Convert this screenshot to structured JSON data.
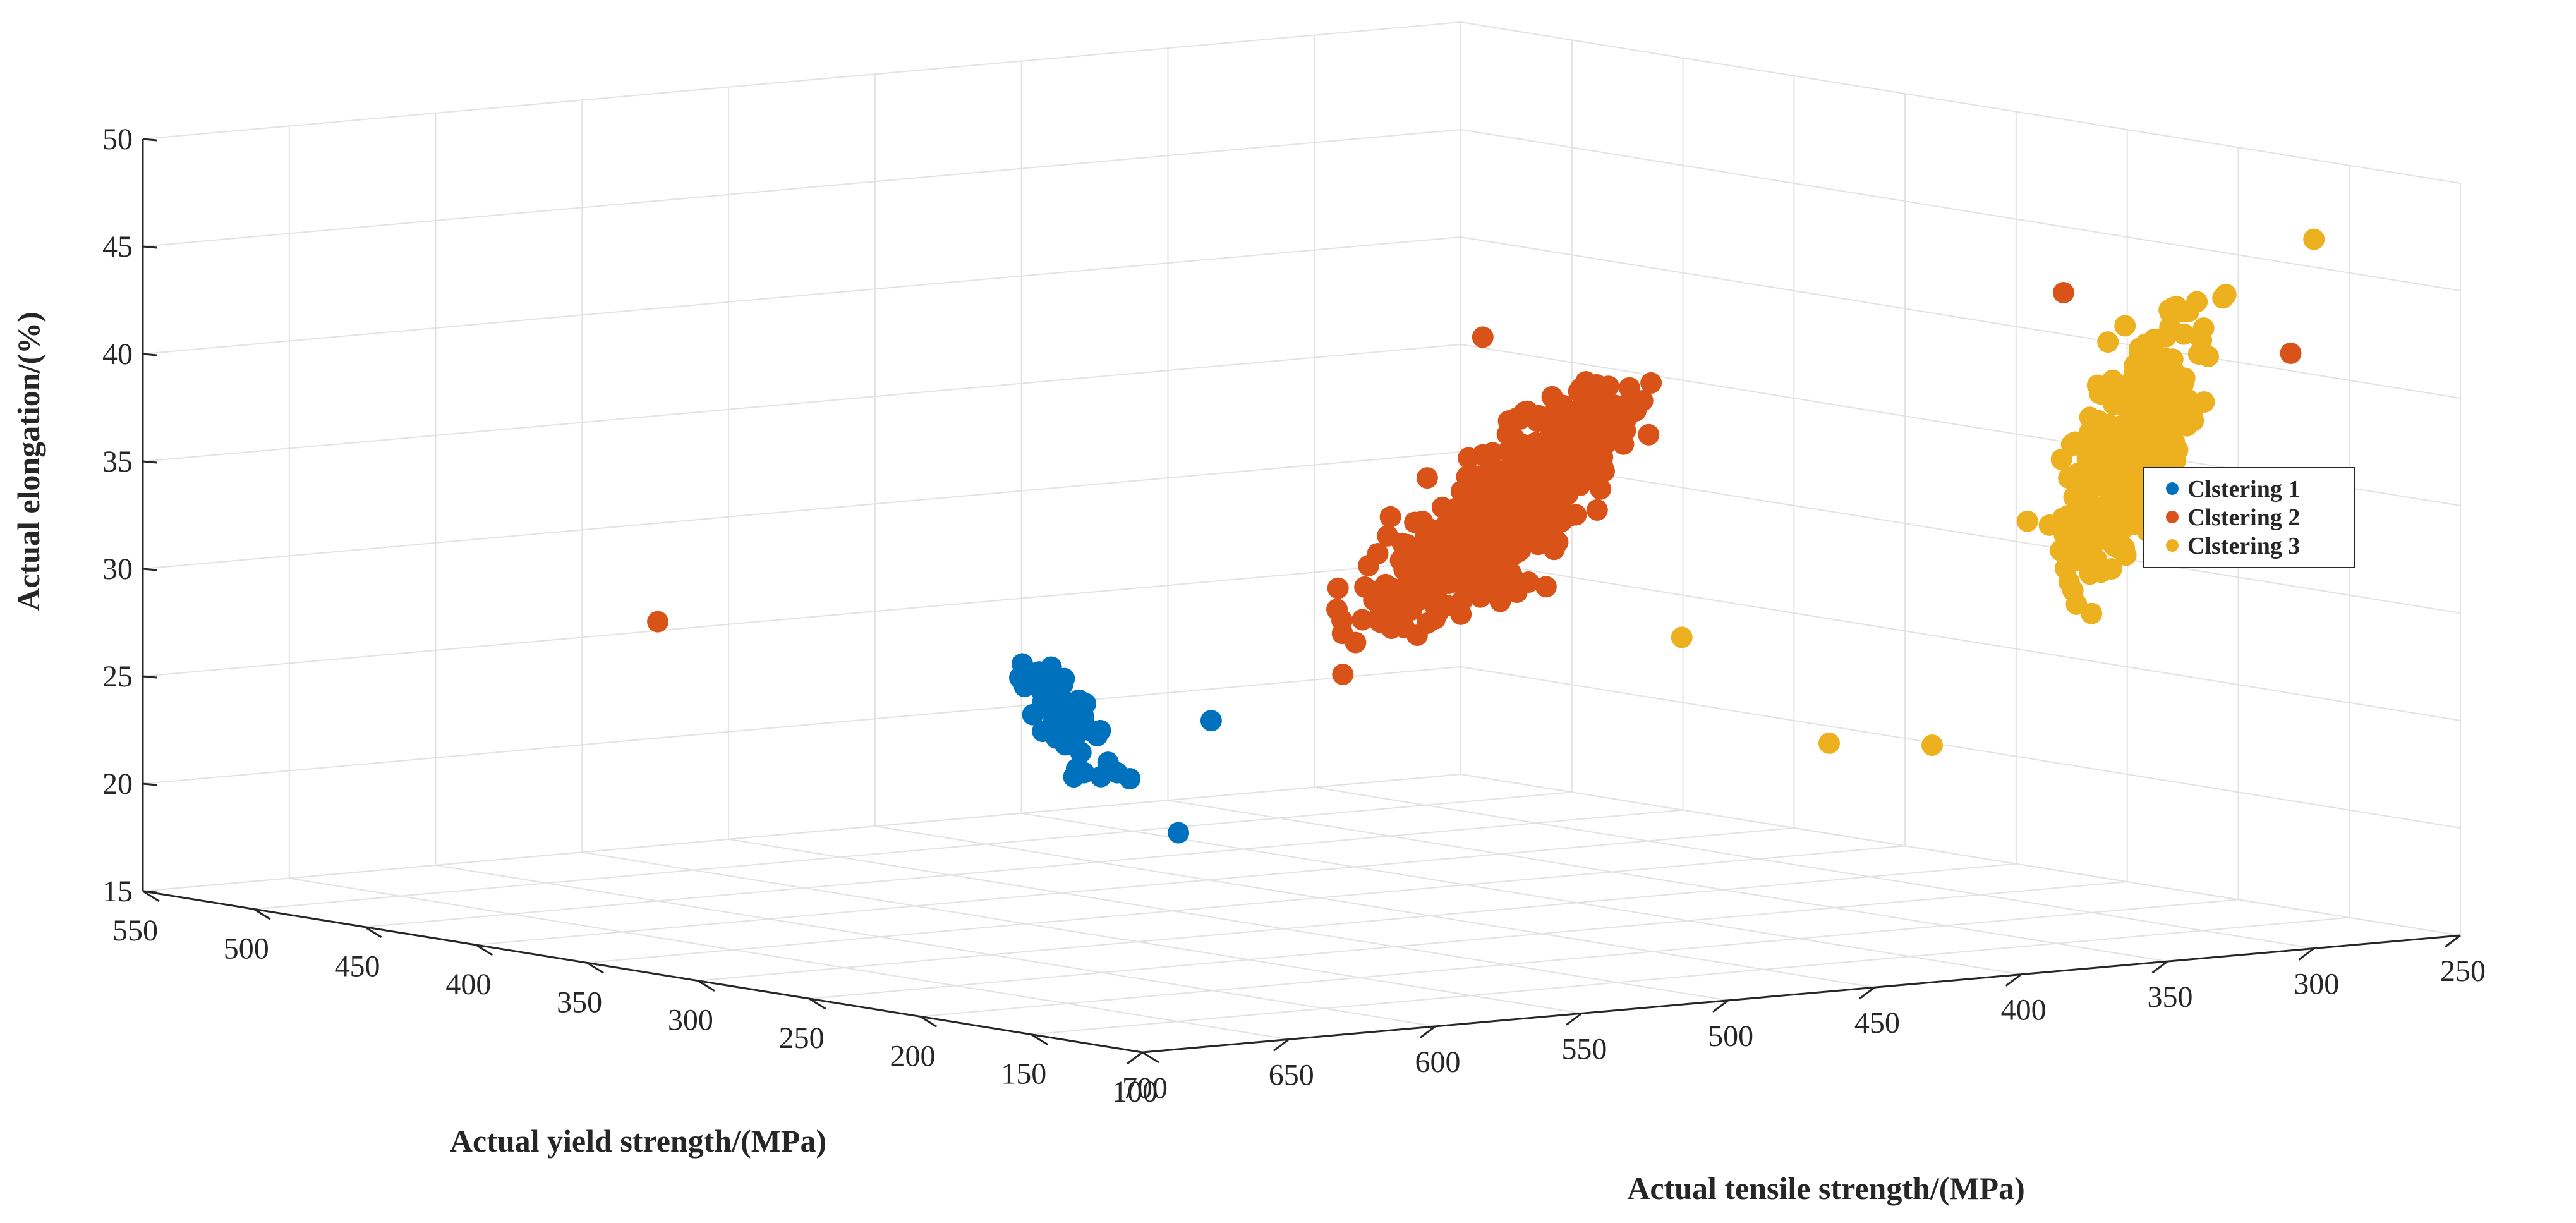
{
  "chart_data": {
    "type": "scatter",
    "title": "",
    "xlabel": "Actual tensile strength/(MPa)",
    "ylabel": "Actual yield strength/(MPa)",
    "zlabel": "Actual elongation/(%)",
    "xlim": [
      250,
      700
    ],
    "ylim": [
      100,
      550
    ],
    "zlim": [
      15,
      50
    ],
    "x_ticks": [
      "250",
      "300",
      "350",
      "400",
      "450",
      "500",
      "550",
      "600",
      "650",
      "700"
    ],
    "y_ticks": [
      "100",
      "150",
      "200",
      "250",
      "300",
      "350",
      "400",
      "450",
      "500",
      "550"
    ],
    "z_ticks": [
      "15",
      "20",
      "25",
      "30",
      "35",
      "40",
      "45",
      "50"
    ],
    "grid": true,
    "legend_position": "right",
    "series": [
      {
        "name": "Clstering 1",
        "color": "#0072BD",
        "centroid": [
          470,
          440,
          22.5
        ],
        "count": 55,
        "spread": [
          14,
          30,
          1.4
        ],
        "extra_points": [
          [
            420,
            505,
            22.0
          ],
          [
            445,
            420,
            16.8
          ],
          [
            540,
            280,
            25.5
          ]
        ]
      },
      {
        "name": "Clstering 2",
        "color": "#D95319",
        "centroid": [
          440,
          280,
          34.0
        ],
        "count": 600,
        "spread": [
          45,
          28,
          2.6
        ],
        "extra_points": [
          [
            340,
            160,
            45.0
          ],
          [
            470,
            250,
            43.0
          ],
          [
            480,
            300,
            28.5
          ],
          [
            270,
            150,
            41.5
          ],
          [
            600,
            450,
            28.0
          ]
        ]
      },
      {
        "name": "Clstering 3",
        "color": "#EDB120",
        "centroid": [
          325,
          150,
          38.0
        ],
        "count": 300,
        "spread": [
          28,
          22,
          3.5
        ],
        "extra_points": [
          [
            420,
            160,
            25.0
          ],
          [
            400,
            140,
            25.0
          ],
          [
            440,
            200,
            29.5
          ],
          [
            300,
            100,
            48.0
          ]
        ]
      }
    ]
  }
}
